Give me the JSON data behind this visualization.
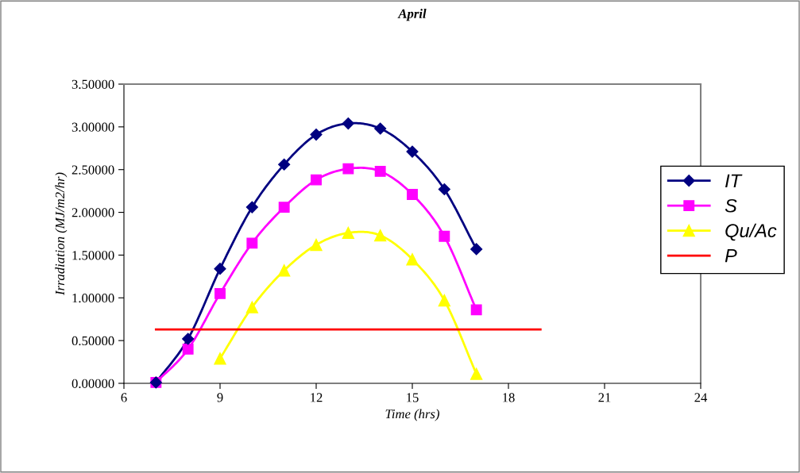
{
  "chart_data": {
    "type": "line",
    "title": "April",
    "xlabel": "Time (hrs)",
    "ylabel": "Irradiation (MJ/m2/hr)",
    "xlim": [
      6,
      24
    ],
    "xticks": [
      6,
      9,
      12,
      15,
      18,
      21,
      24
    ],
    "ylim": [
      0,
      3.5
    ],
    "yticks": [
      {
        "value": 0,
        "label": "0.00000"
      },
      {
        "value": 0.5,
        "label": "0.50000"
      },
      {
        "value": 1,
        "label": "1.00000"
      },
      {
        "value": 1.5,
        "label": "1.50000"
      },
      {
        "value": 2,
        "label": "2.00000"
      },
      {
        "value": 2.5,
        "label": "2.50000"
      },
      {
        "value": 3,
        "label": "3.00000"
      },
      {
        "value": 3.5,
        "label": "3.50000"
      }
    ],
    "grid": false,
    "legend": "right",
    "line_style": "solid",
    "series": [
      {
        "name": "IT",
        "color": "#000080",
        "marker": "diamond",
        "x": [
          7,
          8,
          9,
          10,
          11,
          12,
          13,
          14,
          15,
          16,
          17
        ],
        "values": [
          0.01,
          0.52,
          1.34,
          2.06,
          2.56,
          2.91,
          3.04,
          2.98,
          2.71,
          2.27,
          1.57
        ]
      },
      {
        "name": "S",
        "color": "#ff00ff",
        "marker": "square",
        "x": [
          7,
          8,
          9,
          10,
          11,
          12,
          13,
          14,
          15,
          16,
          17
        ],
        "values": [
          0.01,
          0.4,
          1.05,
          1.64,
          2.06,
          2.38,
          2.51,
          2.48,
          2.21,
          1.72,
          0.86
        ]
      },
      {
        "name": "Qu/Ac",
        "color": "#ffff00",
        "marker": "triangle",
        "x": [
          9,
          10,
          11,
          12,
          13,
          14,
          15,
          16,
          17
        ],
        "values": [
          0.29,
          0.89,
          1.32,
          1.62,
          1.76,
          1.73,
          1.45,
          0.97,
          0.11
        ]
      },
      {
        "name": "P",
        "color": "#ff0000",
        "marker": "none",
        "x": [
          7,
          19
        ],
        "values": [
          0.63,
          0.63
        ]
      }
    ]
  }
}
